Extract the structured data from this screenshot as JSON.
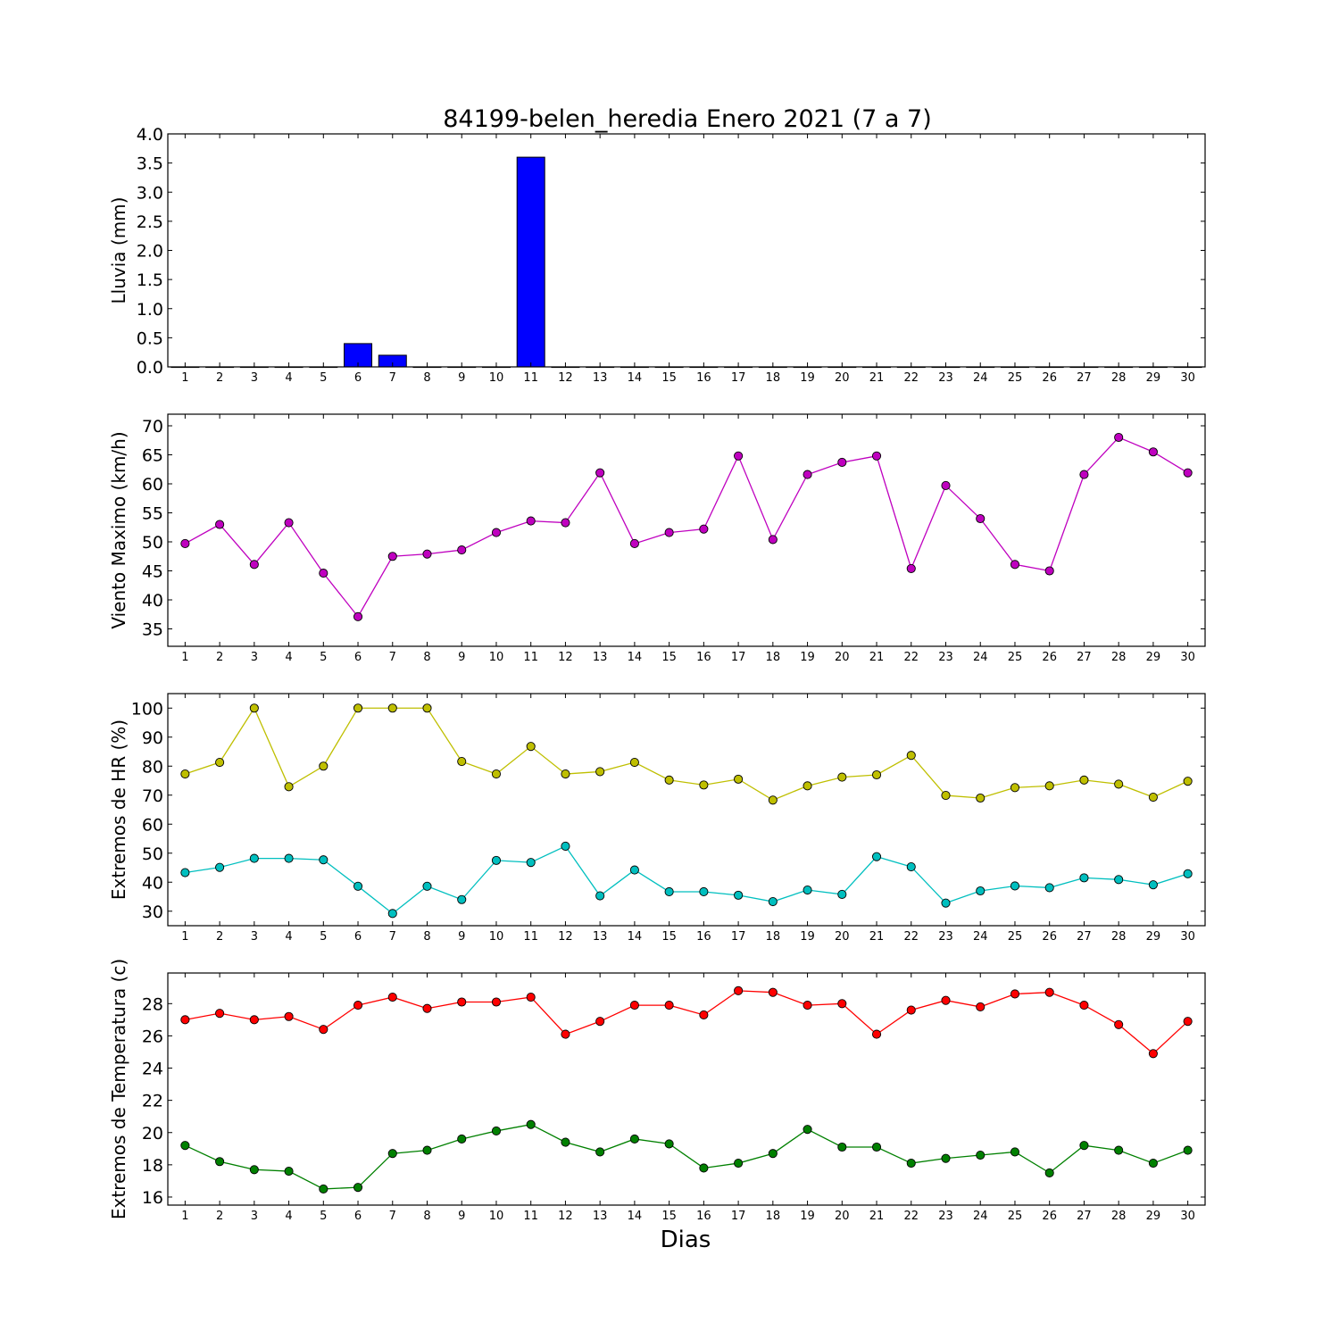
{
  "figure": {
    "title": "84199-belen_heredia Enero 2021  (7 a 7)",
    "xlabel": "Dias"
  },
  "chart_data": [
    {
      "type": "bar",
      "ylabel": "Lluvia (mm)",
      "color": "#0000ff",
      "x": [
        1,
        2,
        3,
        4,
        5,
        6,
        7,
        8,
        9,
        10,
        11,
        12,
        13,
        14,
        15,
        16,
        17,
        18,
        19,
        20,
        21,
        22,
        23,
        24,
        25,
        26,
        27,
        28,
        29,
        30
      ],
      "xlim": [
        0.5,
        30.5
      ],
      "ylim": [
        0,
        4.0
      ],
      "yticks": [
        0.0,
        0.5,
        1.0,
        1.5,
        2.0,
        2.5,
        3.0,
        3.5,
        4.0
      ],
      "ytick_labels": [
        "0.0",
        "0.5",
        "1.0",
        "1.5",
        "2.0",
        "2.5",
        "3.0",
        "3.5",
        "4.0"
      ],
      "series": [
        {
          "values": [
            0,
            0,
            0,
            0,
            0,
            0.4,
            0.2,
            0,
            0,
            0,
            3.6,
            0,
            0,
            0,
            0,
            0,
            0,
            0,
            0,
            0,
            0,
            0,
            0,
            0,
            0,
            0,
            0,
            0,
            0,
            0
          ]
        }
      ]
    },
    {
      "type": "line",
      "ylabel": "Viento Maximo (km/h)",
      "x": [
        1,
        2,
        3,
        4,
        5,
        6,
        7,
        8,
        9,
        10,
        11,
        12,
        13,
        14,
        15,
        16,
        17,
        18,
        19,
        20,
        21,
        22,
        23,
        24,
        25,
        26,
        27,
        28,
        29,
        30
      ],
      "xlim": [
        0.5,
        30.5
      ],
      "ylim": [
        32,
        72
      ],
      "yticks": [
        35,
        40,
        45,
        50,
        55,
        60,
        65,
        70
      ],
      "ytick_labels": [
        "35",
        "40",
        "45",
        "50",
        "55",
        "60",
        "65",
        "70"
      ],
      "series": [
        {
          "color": "#bf00bf",
          "values": [
            49.7,
            53,
            46.1,
            53.3,
            44.6,
            37.1,
            47.5,
            47.9,
            48.6,
            51.6,
            53.6,
            53.3,
            61.9,
            49.7,
            51.6,
            52.2,
            64.8,
            50.4,
            61.6,
            63.7,
            64.8,
            45.4,
            59.7,
            54,
            46.1,
            45,
            61.6,
            68,
            65.5,
            61.9
          ]
        }
      ]
    },
    {
      "type": "line",
      "ylabel": "Extremos de HR (%)",
      "x": [
        1,
        2,
        3,
        4,
        5,
        6,
        7,
        8,
        9,
        10,
        11,
        12,
        13,
        14,
        15,
        16,
        17,
        18,
        19,
        20,
        21,
        22,
        23,
        24,
        25,
        26,
        27,
        28,
        29,
        30
      ],
      "xlim": [
        0.5,
        30.5
      ],
      "ylim": [
        25,
        105
      ],
      "yticks": [
        30,
        40,
        50,
        60,
        70,
        80,
        90,
        100
      ],
      "ytick_labels": [
        "30",
        "40",
        "50",
        "60",
        "70",
        "80",
        "90",
        "100"
      ],
      "series": [
        {
          "color": "#bfbf00",
          "values": [
            77.3,
            81.3,
            100,
            72.9,
            80,
            100,
            100,
            100,
            81.6,
            77.3,
            86.8,
            77.3,
            78.1,
            81.3,
            75.2,
            73.5,
            75.5,
            68.3,
            73.2,
            76.2,
            77,
            83.7,
            69.9,
            69,
            72.6,
            73.2,
            75.2,
            73.8,
            69.3,
            74.8
          ]
        },
        {
          "color": "#00bfbf",
          "values": [
            43.3,
            45.1,
            48.2,
            48.2,
            47.7,
            38.6,
            29.2,
            38.6,
            34,
            47.5,
            46.8,
            52.4,
            35.3,
            44.2,
            36.7,
            36.7,
            35.5,
            33.3,
            37.3,
            35.8,
            48.8,
            45.3,
            32.8,
            37,
            38.7,
            38.1,
            41.5,
            40.9,
            39.1,
            42.9
          ]
        }
      ]
    },
    {
      "type": "line",
      "ylabel": "Extremos de Temperatura (c)",
      "x": [
        1,
        2,
        3,
        4,
        5,
        6,
        7,
        8,
        9,
        10,
        11,
        12,
        13,
        14,
        15,
        16,
        17,
        18,
        19,
        20,
        21,
        22,
        23,
        24,
        25,
        26,
        27,
        28,
        29,
        30
      ],
      "xlim": [
        0.5,
        30.5
      ],
      "ylim": [
        15.5,
        29.9
      ],
      "yticks": [
        16,
        18,
        20,
        22,
        24,
        26,
        28
      ],
      "ytick_labels": [
        "16",
        "18",
        "20",
        "22",
        "24",
        "26",
        "28"
      ],
      "series": [
        {
          "color": "#ff0000",
          "values": [
            27,
            27.4,
            27,
            27.2,
            26.4,
            27.9,
            28.4,
            27.7,
            28.1,
            28.1,
            28.4,
            26.1,
            26.9,
            27.9,
            27.9,
            27.3,
            28.8,
            28.7,
            27.9,
            28,
            26.1,
            27.6,
            28.2,
            27.8,
            28.6,
            28.7,
            27.9,
            26.7,
            24.9,
            26.9
          ]
        },
        {
          "color": "#008000",
          "values": [
            19.2,
            18.2,
            17.7,
            17.6,
            16.5,
            16.6,
            18.7,
            18.9,
            19.6,
            20.1,
            20.5,
            19.4,
            18.8,
            19.6,
            19.3,
            17.8,
            18.1,
            18.7,
            20.2,
            19.1,
            19.1,
            18.1,
            18.4,
            18.6,
            18.8,
            17.5,
            19.2,
            18.9,
            18.1,
            18.9
          ]
        }
      ]
    }
  ]
}
